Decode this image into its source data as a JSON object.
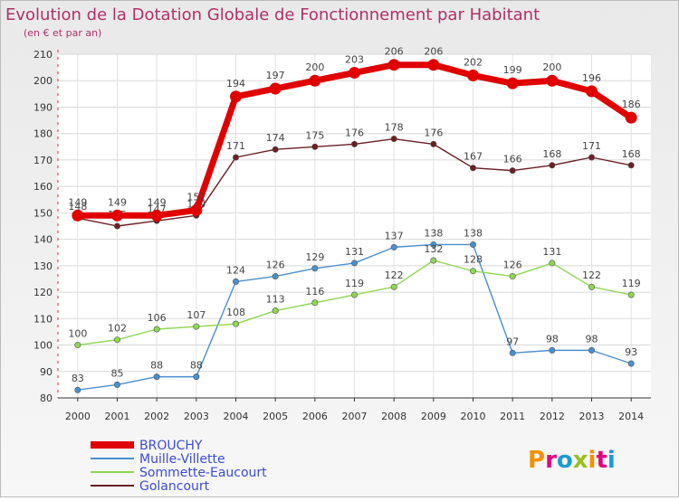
{
  "colors": {
    "BROUCHY": "#e00000",
    "Muille-Villette": "#4a8fd0",
    "Sommette-Eaucourt": "#8fd653",
    "Golancourt": "#6a1f24",
    "title": "#b0306a",
    "legend_text": "#3c4cd0"
  },
  "chart_data": {
    "type": "line",
    "title": "Evolution de la Dotation Globale de Fonctionnement par Habitant",
    "subtitle": "(en € et par an)",
    "xlabel": "",
    "ylabel": "",
    "ylim": [
      80,
      210
    ],
    "yticks": [
      80,
      90,
      100,
      110,
      120,
      130,
      140,
      150,
      160,
      170,
      180,
      190,
      200,
      210
    ],
    "x": [
      "2000",
      "2001",
      "2002",
      "2003",
      "2004",
      "2005",
      "2006",
      "2007",
      "2008",
      "2009",
      "2010",
      "2011",
      "2012",
      "2013",
      "2014"
    ],
    "grid": true,
    "legend_position": "bottom-left",
    "series": [
      {
        "name": "BROUCHY",
        "values": [
          149,
          149,
          149,
          151,
          194,
          197,
          200,
          203,
          206,
          206,
          202,
          199,
          200,
          196,
          186
        ]
      },
      {
        "name": "Muille-Villette",
        "values": [
          83,
          85,
          88,
          88,
          124,
          126,
          129,
          131,
          137,
          138,
          138,
          97,
          98,
          98,
          93
        ]
      },
      {
        "name": "Sommette-Eaucourt",
        "values": [
          100,
          102,
          106,
          107,
          108,
          113,
          116,
          119,
          122,
          132,
          128,
          126,
          131,
          122,
          119
        ]
      },
      {
        "name": "Golancourt",
        "values": [
          148,
          145,
          147,
          149,
          171,
          174,
          175,
          176,
          178,
          176,
          167,
          166,
          168,
          171,
          168
        ]
      }
    ]
  },
  "logo": {
    "text": "Proxiti"
  }
}
